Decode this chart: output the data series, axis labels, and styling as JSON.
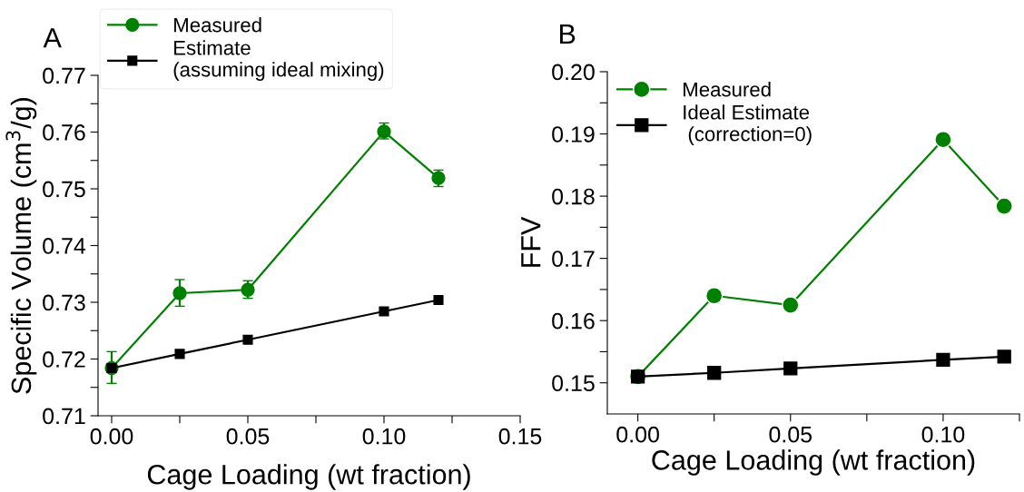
{
  "chart_data": [
    {
      "type": "line",
      "title": "A",
      "xlabel": "Cage Loading (wt fraction)",
      "ylabel": "Specific Volume (cm$^{3}$/g)",
      "x": [
        0.0,
        0.025,
        0.05,
        0.1,
        0.12
      ],
      "series": [
        {
          "name": "Measured",
          "color": "#008000",
          "marker": "circle",
          "values": [
            0.7184,
            0.7316,
            0.7322,
            0.7601,
            0.7519
          ],
          "errors": [
            [
              0.7157,
              0.7213
            ],
            [
              0.7293,
              0.734
            ],
            [
              0.7307,
              0.7338
            ],
            [
              0.7588,
              0.7616
            ],
            [
              0.7504,
              0.7533
            ]
          ]
        },
        {
          "name": "Estimate\n(assuming ideal mixing)",
          "color": "#000000",
          "marker": "square",
          "values": [
            0.7184,
            0.7209,
            0.7234,
            0.7284,
            0.7304
          ]
        }
      ],
      "xlim": [
        -0.005,
        0.15
      ],
      "xticks": [
        {
          "value": 0.0,
          "label": "0.00"
        },
        {
          "value": 0.025,
          "label": null
        },
        {
          "value": 0.05,
          "label": "0.05"
        },
        {
          "value": 0.075,
          "label": null
        },
        {
          "value": 0.1,
          "label": "0.10"
        },
        {
          "value": 0.125,
          "label": null
        },
        {
          "value": 0.15,
          "label": "0.15"
        }
      ],
      "ylim": [
        0.71,
        0.77
      ],
      "yticks": [
        0.71,
        {
          "value": 0.715,
          "label": null
        },
        0.72,
        {
          "value": 0.725,
          "label": null
        },
        0.73,
        {
          "value": 0.735,
          "label": null
        },
        0.74,
        {
          "value": 0.745,
          "label": null
        },
        0.75,
        {
          "value": 0.755,
          "label": null
        },
        0.76,
        {
          "value": 0.765,
          "label": null
        },
        0.77
      ],
      "grid": false,
      "legend": "top left"
    },
    {
      "type": "line",
      "title": "B",
      "xlabel": "Cage Loading (wt fraction)",
      "ylabel": "FFV",
      "x": [
        0.0,
        0.025,
        0.05,
        0.1,
        0.12
      ],
      "series": [
        {
          "name": "Measured",
          "color": "#008000",
          "marker": "circle",
          "values": [
            0.151,
            0.164,
            0.1625,
            0.1891,
            0.1784
          ]
        },
        {
          "name": "Ideal Estimate\n (correction=0)",
          "color": "#000000",
          "marker": "square",
          "values": [
            0.151,
            0.1516,
            0.1523,
            0.1537,
            0.1542
          ]
        }
      ],
      "xlim": [
        -0.01,
        0.125
      ],
      "xticks": [
        {
          "value": 0.0,
          "label": "0.00"
        },
        {
          "value": 0.025,
          "label": null
        },
        {
          "value": 0.05,
          "label": "0.05"
        },
        {
          "value": 0.075,
          "label": null
        },
        {
          "value": 0.1,
          "label": "0.10"
        },
        {
          "value": 0.125,
          "label": null
        }
      ],
      "ylim": [
        0.145,
        0.2
      ],
      "yticks": [
        0.15,
        {
          "value": 0.155,
          "label": null
        },
        0.16,
        {
          "value": 0.165,
          "label": null
        },
        0.17,
        {
          "value": 0.175,
          "label": null
        },
        0.18,
        {
          "value": 0.185,
          "label": null
        },
        0.19,
        {
          "value": 0.195,
          "label": null
        },
        {
          "value": 0.2,
          "label": "0.20"
        }
      ],
      "grid": false,
      "legend": "top left"
    }
  ]
}
